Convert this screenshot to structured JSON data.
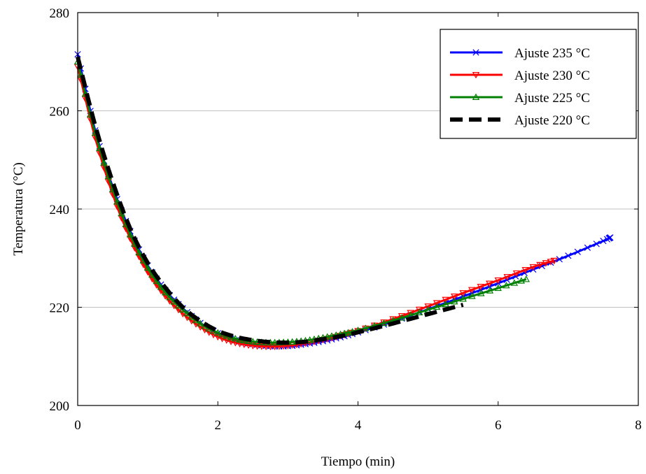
{
  "chart_data": {
    "type": "line",
    "xlabel": "Tiempo (min)",
    "ylabel": "Temperatura (°C)",
    "xlim": [
      0,
      8
    ],
    "ylim": [
      200,
      280
    ],
    "xticks": [
      0,
      2,
      4,
      6,
      8
    ],
    "yticks": [
      200,
      220,
      240,
      260,
      280
    ],
    "grid": "horizontal",
    "legend_position": "top-right",
    "series": [
      {
        "name": "Ajuste 235 °C",
        "color": "#0000ff",
        "marker": "x",
        "x": [
          0,
          0.25,
          0.5,
          0.75,
          1.0,
          1.25,
          1.5,
          1.75,
          2.0,
          2.25,
          2.5,
          2.75,
          3.0,
          3.25,
          3.5,
          3.75,
          4.0,
          4.5,
          5.0,
          5.5,
          6.0,
          6.5,
          7.0,
          7.5,
          7.6
        ],
        "y": [
          271.5,
          256.0,
          244.5,
          235.5,
          228.5,
          223.5,
          219.8,
          216.8,
          214.7,
          213.3,
          212.5,
          212.1,
          212.1,
          212.5,
          213.1,
          213.9,
          214.9,
          217.1,
          219.6,
          222.2,
          224.9,
          227.7,
          230.5,
          233.5,
          234.2
        ]
      },
      {
        "name": "Ajuste 230 °C",
        "color": "#ff0000",
        "marker": "triangle-down",
        "x": [
          0,
          0.25,
          0.5,
          0.75,
          1.0,
          1.25,
          1.5,
          1.75,
          2.0,
          2.25,
          2.5,
          2.75,
          3.0,
          3.25,
          3.5,
          3.75,
          4.0,
          4.5,
          5.0,
          5.5,
          6.0,
          6.5,
          6.8
        ],
        "y": [
          269.0,
          254.5,
          243.0,
          234.0,
          227.2,
          222.3,
          218.7,
          216.0,
          214.0,
          212.8,
          212.2,
          212.0,
          212.2,
          212.7,
          213.4,
          214.2,
          215.2,
          217.6,
          220.2,
          222.9,
          225.5,
          228.2,
          229.5
        ]
      },
      {
        "name": "Ajuste 225 °C",
        "color": "#008000",
        "marker": "triangle-up",
        "x": [
          0,
          0.25,
          0.5,
          0.75,
          1.0,
          1.25,
          1.5,
          1.75,
          2.0,
          2.25,
          2.5,
          2.75,
          3.0,
          3.25,
          3.5,
          3.75,
          4.0,
          4.5,
          5.0,
          5.5,
          6.0,
          6.4
        ],
        "y": [
          270.0,
          255.5,
          244.0,
          234.8,
          228.0,
          223.0,
          219.5,
          216.7,
          214.8,
          213.6,
          213.0,
          212.8,
          212.9,
          213.2,
          213.8,
          214.5,
          215.3,
          217.3,
          219.5,
          221.7,
          223.9,
          225.7
        ]
      },
      {
        "name": "Ajuste 220 °C",
        "color": "#000000",
        "marker": "none",
        "x": [
          0,
          0.25,
          0.5,
          0.75,
          1.0,
          1.25,
          1.5,
          1.75,
          2.0,
          2.25,
          2.5,
          2.75,
          3.0,
          3.25,
          3.5,
          3.75,
          4.0,
          4.5,
          5.0,
          5.5
        ],
        "y": [
          271.0,
          257.0,
          245.5,
          236.0,
          229.0,
          224.0,
          220.0,
          217.2,
          215.2,
          214.0,
          213.3,
          212.9,
          212.8,
          213.0,
          213.5,
          214.1,
          214.9,
          216.7,
          218.6,
          220.5
        ]
      }
    ]
  }
}
